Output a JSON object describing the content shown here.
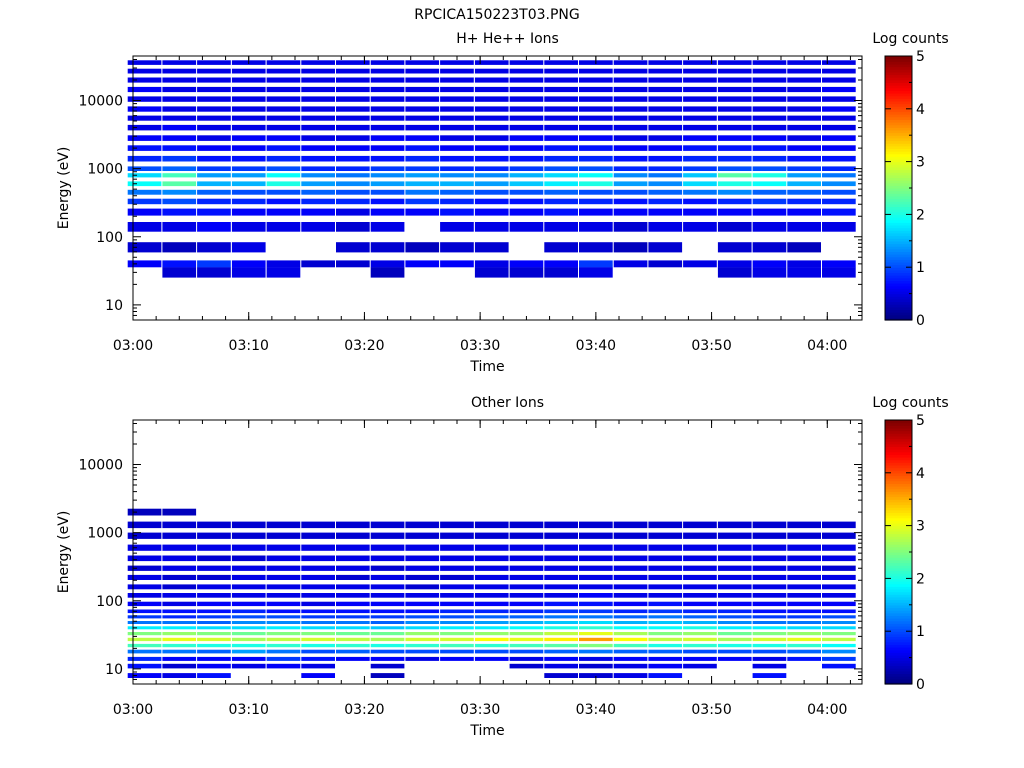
{
  "figure_title": "RPCICA150223T03.PNG",
  "chart_data": [
    {
      "type": "heatmap",
      "title": "H+ He++ Ions",
      "xlabel": "Time",
      "ylabel": "Energy (eV)",
      "y_scale": "log",
      "ylim": [
        6,
        45000
      ],
      "xlim": [
        "03:00",
        "04:03"
      ],
      "x_ticks": [
        "03:00",
        "03:10",
        "03:20",
        "03:30",
        "03:40",
        "03:50",
        "04:00"
      ],
      "y_ticks": [
        "10",
        "100",
        "1000",
        "10000"
      ],
      "colorbar": {
        "label": "Log counts",
        "range": [
          0,
          5
        ],
        "ticks": [
          "0",
          "1",
          "2",
          "3",
          "4",
          "5"
        ]
      },
      "time_bins": [
        "03:01",
        "03:04",
        "03:07",
        "03:10",
        "03:13",
        "03:16",
        "03:19",
        "03:22",
        "03:25",
        "03:28",
        "03:31",
        "03:34",
        "03:37",
        "03:40",
        "03:43",
        "03:46",
        "03:49",
        "03:52",
        "03:55",
        "03:58",
        "04:01"
      ],
      "energy_bins_ev": [
        11,
        30,
        40,
        70,
        140,
        230,
        330,
        450,
        600,
        800,
        1000,
        1400,
        2000,
        2800,
        4000,
        5500,
        7500,
        10500,
        14500,
        20000,
        27000,
        36000
      ],
      "log_counts": [
        [
          0,
          0,
          0,
          0,
          0,
          0,
          0,
          0,
          0,
          0,
          0,
          0,
          0,
          0,
          0,
          0,
          0,
          0,
          0,
          0,
          0
        ],
        [
          0,
          0.4,
          0.4,
          0.5,
          0.5,
          0,
          0,
          0.3,
          0,
          0,
          0.4,
          0.4,
          0.4,
          0.5,
          0,
          0,
          0,
          0.4,
          0.5,
          0.5,
          0.5
        ],
        [
          0.6,
          0.7,
          0.9,
          0.6,
          0.5,
          0.4,
          0.4,
          0.5,
          0.6,
          0.6,
          0.5,
          0.6,
          0.6,
          0.9,
          0.5,
          0.4,
          0.5,
          0.5,
          0.6,
          0.5,
          0.6
        ],
        [
          0.4,
          0.3,
          0.4,
          0.5,
          0,
          0,
          0.4,
          0.4,
          0.3,
          0.4,
          0.4,
          0,
          0.4,
          0.4,
          0.3,
          0.4,
          0,
          0.4,
          0.4,
          0.3,
          0
        ],
        [
          0.5,
          0.5,
          0.6,
          0.5,
          0.5,
          0.5,
          0.4,
          0.5,
          0,
          0.5,
          0.5,
          0.5,
          0.5,
          0.5,
          0.4,
          0.5,
          0.5,
          0.4,
          0.5,
          0.5,
          0.5
        ],
        [
          0.6,
          0.7,
          0.7,
          0.6,
          0.6,
          0.6,
          0.5,
          0.6,
          0.6,
          0.7,
          0.6,
          0.6,
          0.7,
          0.6,
          0.6,
          0.6,
          0.6,
          0.6,
          0.6,
          0.6,
          0.7
        ],
        [
          0.9,
          1.0,
          0.8,
          0.8,
          0.7,
          0.8,
          0.8,
          0.7,
          0.9,
          0.8,
          0.7,
          0.7,
          0.8,
          0.8,
          0.7,
          0.8,
          0.7,
          0.8,
          0.9,
          0.8,
          0.8
        ],
        [
          1.2,
          1.3,
          1.1,
          1.0,
          1.0,
          1.1,
          1.0,
          1.0,
          1.2,
          1.1,
          1.0,
          1.0,
          1.1,
          1.0,
          1.0,
          1.1,
          1.2,
          1.3,
          1.1,
          1.1,
          1.0
        ],
        [
          1.9,
          2.3,
          1.5,
          1.5,
          2.0,
          1.4,
          1.3,
          1.4,
          1.5,
          1.5,
          1.4,
          1.6,
          1.8,
          2.0,
          1.4,
          1.3,
          1.7,
          2.0,
          1.9,
          1.5,
          1.3
        ],
        [
          1.7,
          2.2,
          1.4,
          1.4,
          1.9,
          1.3,
          1.2,
          1.3,
          1.4,
          1.3,
          1.3,
          1.5,
          1.7,
          1.9,
          1.3,
          1.2,
          1.6,
          2.3,
          2.0,
          1.4,
          1.2
        ],
        [
          1.0,
          1.1,
          0.9,
          0.9,
          1.0,
          0.8,
          0.8,
          0.9,
          0.9,
          0.8,
          0.8,
          0.9,
          1.0,
          1.0,
          0.8,
          0.8,
          0.9,
          1.0,
          1.0,
          0.9,
          0.8
        ],
        [
          0.8,
          0.9,
          0.7,
          0.7,
          0.8,
          0.7,
          0.7,
          0.7,
          0.8,
          0.7,
          0.7,
          0.7,
          0.8,
          0.8,
          0.7,
          0.7,
          0.8,
          0.8,
          0.8,
          0.7,
          0.7
        ],
        [
          0.7,
          0.7,
          0.6,
          0.6,
          0.7,
          0.6,
          0.6,
          0.6,
          0.7,
          0.6,
          0.6,
          0.6,
          0.7,
          0.7,
          0.6,
          0.6,
          0.7,
          0.7,
          0.7,
          0.6,
          0.6
        ],
        [
          0.6,
          0.6,
          0.5,
          0.6,
          0.6,
          0.5,
          0.5,
          0.6,
          0.6,
          0.5,
          0.5,
          0.6,
          0.6,
          0.6,
          0.5,
          0.5,
          0.6,
          0.6,
          0.6,
          0.5,
          0.6
        ],
        [
          0.5,
          0.6,
          0.5,
          0.5,
          0.5,
          0.5,
          0.5,
          0.5,
          0.5,
          0.5,
          0.5,
          0.5,
          0.5,
          0.5,
          0.5,
          0.5,
          0.5,
          0.5,
          0.5,
          0.5,
          0.5
        ],
        [
          0.5,
          0.5,
          0.5,
          0.5,
          0.5,
          0.5,
          0.5,
          0.5,
          0.5,
          0.5,
          0.5,
          0.5,
          0.5,
          0.5,
          0.5,
          0.5,
          0.5,
          0.5,
          0.5,
          0.5,
          0.5
        ],
        [
          0.6,
          0.5,
          0.5,
          0.5,
          0.5,
          0.5,
          0.5,
          0.5,
          0.5,
          0.5,
          0.5,
          0.5,
          0.5,
          0.5,
          0.5,
          0.5,
          0.5,
          0.5,
          0.5,
          0.5,
          0.6
        ],
        [
          0.5,
          0.5,
          0.5,
          0.5,
          0.5,
          0.5,
          0.5,
          0.5,
          0.5,
          0.5,
          0.5,
          0.5,
          0.5,
          0.5,
          0.5,
          0.5,
          0.5,
          0.5,
          0.5,
          0.5,
          0.5
        ],
        [
          0.6,
          0.5,
          0.5,
          0.5,
          0.5,
          0.5,
          0.5,
          0.5,
          0.5,
          0.5,
          0.5,
          0.5,
          0.5,
          0.5,
          0.5,
          0.5,
          0.5,
          0.5,
          0.5,
          0.5,
          0.6
        ],
        [
          0.5,
          0.5,
          0.5,
          0.5,
          0.5,
          0.5,
          0.5,
          0.5,
          0.5,
          0.5,
          0.5,
          0.5,
          0.5,
          0.5,
          0.5,
          0.5,
          0.5,
          0.5,
          0.5,
          0.5,
          0.5
        ],
        [
          0.5,
          0.5,
          0.5,
          0.5,
          0.5,
          0.5,
          0.5,
          0.5,
          0.5,
          0.5,
          0.5,
          0.5,
          0.5,
          0.5,
          0.5,
          0.5,
          0.5,
          0.5,
          0.5,
          0.5,
          0.5
        ],
        [
          0.5,
          0.5,
          0.5,
          0.5,
          0.5,
          0.5,
          0.5,
          0.5,
          0.5,
          0.5,
          0.5,
          0.5,
          0.5,
          0.5,
          0.5,
          0.5,
          0.5,
          0.5,
          0.5,
          0.5,
          0.5
        ]
      ]
    },
    {
      "type": "heatmap",
      "title": "Other Ions",
      "xlabel": "Time",
      "ylabel": "Energy (eV)",
      "y_scale": "log",
      "ylim": [
        6,
        45000
      ],
      "xlim": [
        "03:00",
        "04:03"
      ],
      "x_ticks": [
        "03:00",
        "03:10",
        "03:20",
        "03:30",
        "03:40",
        "03:50",
        "04:00"
      ],
      "y_ticks": [
        "10",
        "100",
        "1000",
        "10000"
      ],
      "colorbar": {
        "label": "Log counts",
        "range": [
          0,
          5
        ],
        "ticks": [
          "0",
          "1",
          "2",
          "3",
          "4",
          "5"
        ]
      },
      "time_bins": [
        "03:01",
        "03:04",
        "03:07",
        "03:10",
        "03:13",
        "03:16",
        "03:19",
        "03:22",
        "03:25",
        "03:28",
        "03:31",
        "03:34",
        "03:37",
        "03:40",
        "03:43",
        "03:46",
        "03:49",
        "03:52",
        "03:55",
        "03:58",
        "04:01"
      ],
      "energy_bins_ev": [
        8,
        11,
        14,
        18,
        22,
        27,
        33,
        40,
        48,
        58,
        70,
        90,
        120,
        160,
        220,
        300,
        420,
        600,
        900,
        1300,
        2000,
        3000,
        7600,
        22000
      ],
      "log_counts": [
        [
          0.6,
          0.5,
          0.7,
          0,
          0,
          0.6,
          0,
          0.3,
          0,
          0,
          0,
          0,
          0.4,
          0.4,
          0.5,
          0.7,
          0,
          0,
          0.7,
          0,
          0
        ],
        [
          0.7,
          0.4,
          0.6,
          0.5,
          0.6,
          0.5,
          0,
          0.4,
          0,
          0,
          0,
          0.4,
          0.5,
          0.4,
          0.5,
          0.6,
          0.5,
          0,
          0.5,
          0,
          0.7
        ],
        [
          0.8,
          0.6,
          0.6,
          0.6,
          0.9,
          0.7,
          0.6,
          0.6,
          0.5,
          0.6,
          0.6,
          0.5,
          0.6,
          0.5,
          0.6,
          0.6,
          0.6,
          0.6,
          0.5,
          0.7,
          0.9
        ],
        [
          1.2,
          1.2,
          1.1,
          1.4,
          1.2,
          1.0,
          1.1,
          1.0,
          1.0,
          1.0,
          1.0,
          1.0,
          1.1,
          1.2,
          1.1,
          1.1,
          1.0,
          1.0,
          1.0,
          1.1,
          1.3
        ],
        [
          2.2,
          2.1,
          2.0,
          2.0,
          2.1,
          2.0,
          2.1,
          2.0,
          2.1,
          2.2,
          2.1,
          2.2,
          2.3,
          2.5,
          2.2,
          2.0,
          2.1,
          2.0,
          2.0,
          2.1,
          1.9
        ],
        [
          2.8,
          3.0,
          2.9,
          2.7,
          2.8,
          2.9,
          2.8,
          2.7,
          2.9,
          2.9,
          3.1,
          3.0,
          3.2,
          3.6,
          3.1,
          2.8,
          2.9,
          2.7,
          2.9,
          3.0,
          2.8
        ],
        [
          2.5,
          2.6,
          2.5,
          2.4,
          2.5,
          2.5,
          2.4,
          2.4,
          2.6,
          2.5,
          2.6,
          2.6,
          2.8,
          3.0,
          2.7,
          2.5,
          2.6,
          2.4,
          2.5,
          2.6,
          2.5
        ],
        [
          1.8,
          1.8,
          1.7,
          1.7,
          1.8,
          1.7,
          1.7,
          1.6,
          1.7,
          1.8,
          1.8,
          1.9,
          2.0,
          2.1,
          1.9,
          1.9,
          2.0,
          1.8,
          1.8,
          1.7,
          1.7
        ],
        [
          1.2,
          1.2,
          1.1,
          1.3,
          1.3,
          1.2,
          1.2,
          1.1,
          1.3,
          1.3,
          1.4,
          1.5,
          1.6,
          1.7,
          1.5,
          1.6,
          1.5,
          1.3,
          1.2,
          1.2,
          1.3
        ],
        [
          0.9,
          0.8,
          0.9,
          1.0,
          1.0,
          0.9,
          0.9,
          0.9,
          1.0,
          1.0,
          1.1,
          1.1,
          1.2,
          1.2,
          1.1,
          1.2,
          1.1,
          1.0,
          0.9,
          0.9,
          1.0
        ],
        [
          0.7,
          0.7,
          0.7,
          0.8,
          0.7,
          0.7,
          0.7,
          0.7,
          0.7,
          0.8,
          0.8,
          0.8,
          0.9,
          0.9,
          0.8,
          0.9,
          0.8,
          0.8,
          0.7,
          0.7,
          0.7
        ],
        [
          0.6,
          0.5,
          0.6,
          0.6,
          0.6,
          0.5,
          0.6,
          0.6,
          0.6,
          0.6,
          0.6,
          0.6,
          0.7,
          0.7,
          0.6,
          0.7,
          0.6,
          0.6,
          0.6,
          0.6,
          0.6
        ],
        [
          0.5,
          0.5,
          0.5,
          0.5,
          0.5,
          0.5,
          0.5,
          0.5,
          0.5,
          0.5,
          0.5,
          0.5,
          0.5,
          0.6,
          0.5,
          0.5,
          0.5,
          0.5,
          0.5,
          0.5,
          0.5
        ],
        [
          0.5,
          0.4,
          0.5,
          0.5,
          0.5,
          0.5,
          0.5,
          0.5,
          0.4,
          0.5,
          0.5,
          0.5,
          0.5,
          0.5,
          0.5,
          0.5,
          0.5,
          0.5,
          0.5,
          0.5,
          0.5
        ],
        [
          0.5,
          0.4,
          0.4,
          0.5,
          0.5,
          0.5,
          0.4,
          0.5,
          0.4,
          0.4,
          0.5,
          0.5,
          0.5,
          0.5,
          0.5,
          0.5,
          0.5,
          0.5,
          0.5,
          0.5,
          0.5
        ],
        [
          0.4,
          0.5,
          0.5,
          0.5,
          0.5,
          0.5,
          0.5,
          0.4,
          0.5,
          0.5,
          0.5,
          0.5,
          0.5,
          0.5,
          0.5,
          0.5,
          0.5,
          0.5,
          0.5,
          0.5,
          0.4
        ],
        [
          0.5,
          0.5,
          0.4,
          0.4,
          0.5,
          0.5,
          0.5,
          0.5,
          0.5,
          0.5,
          0.5,
          0.5,
          0.5,
          0.5,
          0.5,
          0.5,
          0.5,
          0.5,
          0.5,
          0.5,
          0.5
        ],
        [
          0.5,
          0.5,
          0.5,
          0.5,
          0.5,
          0.5,
          0.5,
          0.5,
          0.5,
          0.5,
          0.5,
          0.5,
          0.5,
          0.5,
          0.5,
          0.5,
          0.5,
          0.5,
          0.5,
          0.5,
          0.5
        ],
        [
          0.4,
          0.4,
          0.4,
          0.4,
          0.4,
          0.4,
          0.4,
          0.4,
          0.4,
          0.4,
          0.4,
          0.4,
          0.4,
          0.4,
          0.4,
          0.4,
          0.4,
          0.4,
          0.4,
          0.4,
          0.4
        ],
        [
          0.4,
          0.4,
          0.4,
          0.4,
          0.4,
          0.4,
          0.4,
          0.4,
          0.4,
          0.4,
          0.4,
          0.4,
          0.4,
          0.4,
          0.4,
          0.4,
          0.4,
          0.4,
          0.4,
          0.4,
          0.4
        ],
        [
          0.3,
          0.3,
          0,
          0,
          0,
          0,
          0,
          0,
          0,
          0,
          0,
          0,
          0,
          0,
          0,
          0,
          0,
          0,
          0,
          0,
          0
        ],
        [
          0,
          0,
          0,
          0,
          0,
          0,
          0,
          0,
          0,
          0,
          0,
          0,
          0,
          0,
          0,
          0,
          0,
          0,
          0,
          0,
          0
        ],
        [
          0,
          0,
          0,
          0,
          0,
          0,
          0,
          0,
          0,
          0,
          0,
          0,
          0,
          0,
          0,
          0,
          0,
          0,
          0,
          0,
          0
        ],
        [
          0,
          0,
          0,
          0,
          0,
          0,
          0,
          0,
          0,
          0,
          0,
          0,
          0,
          0,
          0,
          0,
          0,
          0,
          0,
          0,
          0
        ]
      ]
    }
  ],
  "colors": {
    "background": "#ffffff",
    "axis": "#000000",
    "empty_cell": "#ffffff"
  }
}
